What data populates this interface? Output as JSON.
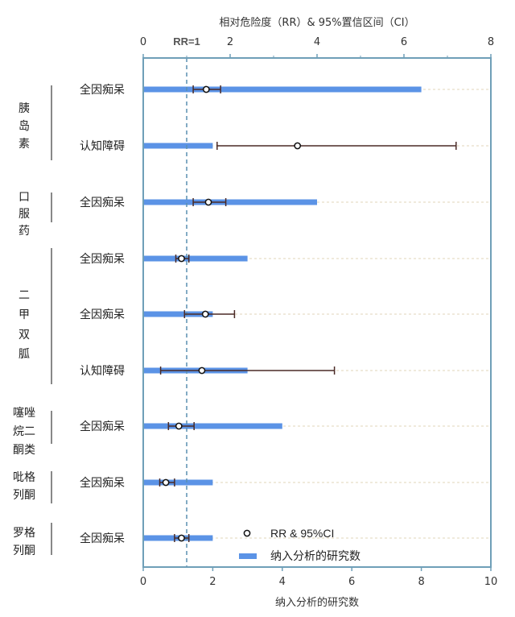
{
  "chart_data": {
    "type": "forest-bar",
    "top_axis": {
      "label": "相对危险度（RR）& 95%置信区间（CI）",
      "min": 0,
      "max": 8,
      "ticks": [
        0,
        2,
        4,
        6,
        8
      ],
      "tick_labels": [
        "0",
        "2",
        "4",
        "6",
        "8"
      ]
    },
    "bottom_axis": {
      "label": "纳入分析的研究数",
      "min": 0,
      "max": 10,
      "ticks": [
        0,
        2,
        4,
        6,
        8,
        10
      ],
      "tick_labels": [
        "0",
        "2",
        "4",
        "6",
        "8",
        "10"
      ]
    },
    "reference_line": {
      "value": 1,
      "label": "RR=1"
    },
    "groups": [
      {
        "name": "胰岛素",
        "rows": [
          0,
          1
        ]
      },
      {
        "name": "口服药",
        "rows": [
          2
        ]
      },
      {
        "name": "二甲双胍",
        "rows": [
          3,
          4,
          5
        ]
      },
      {
        "name": "噻唑烷二酮类",
        "rows": [
          6
        ]
      },
      {
        "name": "吡格列酮",
        "rows": [
          7
        ]
      },
      {
        "name": "罗格列酮",
        "rows": [
          8
        ]
      }
    ],
    "rows": [
      {
        "label": "全因痴呆",
        "studies": 8,
        "rr": 1.45,
        "lo": 1.15,
        "hi": 1.78
      },
      {
        "label": "认知障碍",
        "studies": 2,
        "rr": 3.55,
        "lo": 1.7,
        "hi": 7.2
      },
      {
        "label": "全因痴呆",
        "studies": 5,
        "rr": 1.5,
        "lo": 1.15,
        "hi": 1.9
      },
      {
        "label": "全因痴呆",
        "studies": 3,
        "rr": 0.88,
        "lo": 0.75,
        "hi": 1.05
      },
      {
        "label": "全因痴呆",
        "studies": 2,
        "rr": 1.43,
        "lo": 0.95,
        "hi": 2.1
      },
      {
        "label": "认知障碍",
        "studies": 3,
        "rr": 1.35,
        "lo": 0.4,
        "hi": 4.4
      },
      {
        "label": "全因痴呆",
        "studies": 4,
        "rr": 0.82,
        "lo": 0.58,
        "hi": 1.17
      },
      {
        "label": "全因痴呆",
        "studies": 2,
        "rr": 0.52,
        "lo": 0.38,
        "hi": 0.72
      },
      {
        "label": "全因痴呆",
        "studies": 2,
        "rr": 0.88,
        "lo": 0.72,
        "hi": 1.05
      }
    ],
    "legend": [
      {
        "label": "RR & 95%CI",
        "marker": "open-circle"
      },
      {
        "label": "纳入分析的研究数",
        "marker": "bar"
      }
    ],
    "legend_position": "bottom-center",
    "colors": {
      "bar": "#5b93e6",
      "ci": "#4a2a26",
      "reference": "#5a8fb0",
      "grid": "#e2d6b8",
      "axis": "#6f9fb8"
    }
  }
}
